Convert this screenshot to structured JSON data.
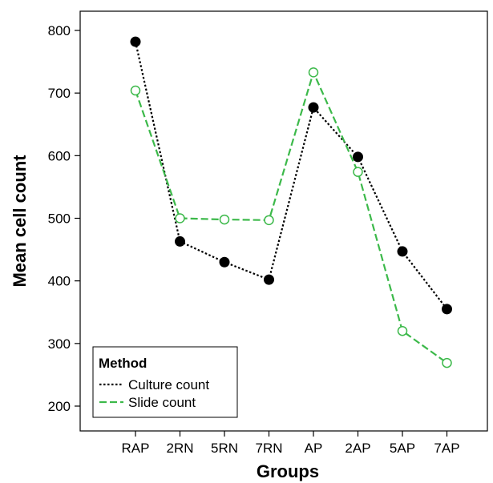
{
  "chart_data": {
    "type": "line",
    "title": "",
    "xlabel": "Groups",
    "ylabel": "Mean cell count",
    "categories": [
      "RAP",
      "2RN",
      "5RN",
      "7RN",
      "AP",
      "2AP",
      "5AP",
      "7AP"
    ],
    "y_ticks": [
      200,
      300,
      400,
      500,
      600,
      700,
      800
    ],
    "ylim": [
      175,
      830
    ],
    "grid": false,
    "legend": {
      "title": "Method",
      "position": "bottom-left"
    },
    "series": [
      {
        "name": "Culture count",
        "color": "#000000",
        "line_style": "dotted",
        "marker": "filled-circle",
        "values": [
          782,
          463,
          430,
          402,
          677,
          598,
          447,
          355
        ]
      },
      {
        "name": "Slide count",
        "color": "#3cb94a",
        "line_style": "dashed",
        "marker": "open-circle",
        "values": [
          704,
          500,
          498,
          497,
          733,
          574,
          320,
          269
        ]
      }
    ]
  }
}
